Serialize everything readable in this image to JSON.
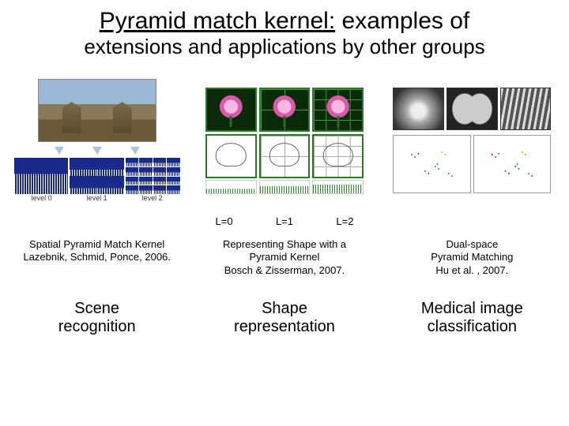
{
  "title": {
    "underlined": "Pyramid match kernel:",
    "rest1": " examples of",
    "line2": "extensions and applications by other groups"
  },
  "columns": [
    {
      "citation_title": "Spatial Pyramid Match Kernel",
      "citation_authors": "Lazebnik, Schmid, Ponce, 2006.",
      "topic_line1": "Scene",
      "topic_line2": "recognition",
      "level_strip": [
        "level 0",
        "level 1",
        "level 2"
      ]
    },
    {
      "level_labels": [
        "L=0",
        "L=1",
        "L=2"
      ],
      "citation_title": "Representing Shape with a",
      "citation_line2": "Pyramid Kernel",
      "citation_authors": "Bosch & Zisserman, 2007.",
      "topic_line1": "Shape",
      "topic_line2": "representation"
    },
    {
      "citation_title": "Dual-space",
      "citation_line2": "Pyramid Matching",
      "citation_authors": "Hu et al. , 2007.",
      "topic_line1": "Medical image",
      "topic_line2": "classification"
    }
  ],
  "colors": {
    "histogram_bg": "#1a2a8a",
    "flower_border": "#2a7a2a",
    "flower_petal": "#f7b8e0"
  }
}
